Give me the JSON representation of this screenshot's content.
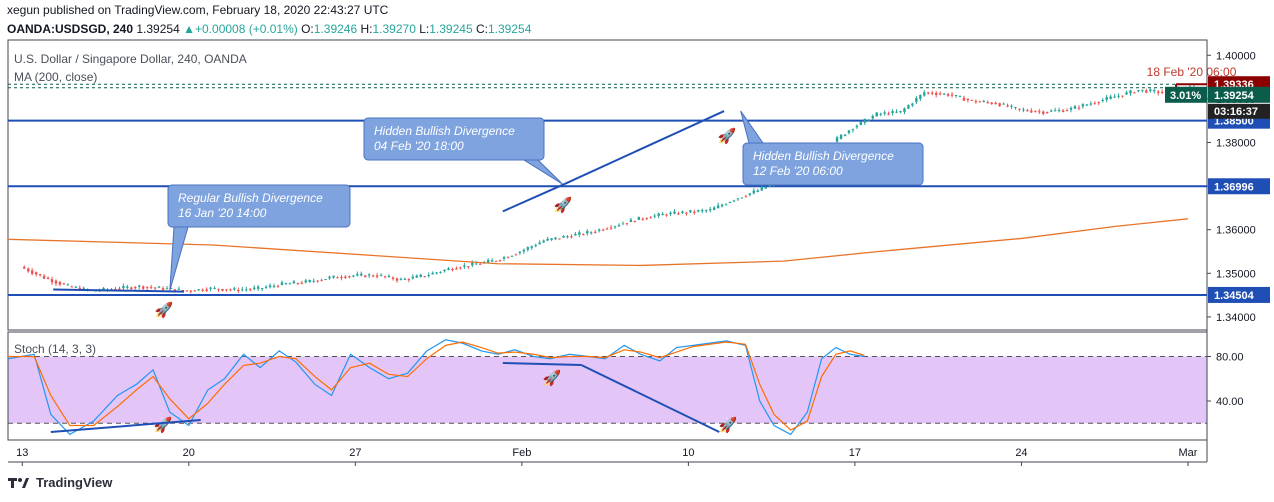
{
  "header": {
    "published": "xegun published on TradingView.com, February 18, 2020 22:43:27 UTC",
    "symbol": "OANDA:USDSGD, 240",
    "last": "1.39254",
    "change": "+0.00008 (+0.01%)",
    "open_label": "O:",
    "open": "1.39246",
    "high_label": "H:",
    "high": "1.39270",
    "low_label": "L:",
    "low": "1.39245",
    "close_label": "C:",
    "close": "1.39254"
  },
  "pane_title": "U.S. Dollar / Singapore Dollar, 240, OANDA",
  "ma_label": "MA (200, close)",
  "stoch_label": "Stoch (14, 3, 3)",
  "footer": {
    "brand": "TradingView"
  },
  "colors": {
    "up": "#26a69a",
    "down": "#ef5350",
    "ma": "#e8742a",
    "level": "#1f4fb5",
    "callout": "#7ea3de",
    "k_line": "#2196f3",
    "d_line": "#ff6d00",
    "stoch_band": "#e3c6f7",
    "price_marker": "#333333",
    "range_line": "#8b0000"
  },
  "chart_data": [
    {
      "type": "candlestick",
      "title": "U.S. Dollar / Singapore Dollar, 240, OANDA",
      "x_ticks": [
        "13",
        "20",
        "27",
        "Feb",
        "10",
        "17",
        "24",
        "Mar"
      ],
      "y_ticks": [
        1.34,
        1.35,
        1.36,
        1.37,
        1.38,
        1.39,
        1.4
      ],
      "y_tick_labels": [
        "1.34000",
        "1.35000",
        "1.36000",
        "1.37000",
        "1.38000",
        "1.39000",
        "1.40000"
      ],
      "ylim": [
        1.337,
        1.4035
      ],
      "xlim_days": [
        -0.6,
        49.8
      ],
      "horizontal_levels": [
        {
          "value": 1.34504,
          "label": "1.34504"
        },
        {
          "value": 1.36996,
          "label": "1.36996"
        },
        {
          "value": 1.385,
          "label": "1.38500"
        }
      ],
      "current_price": {
        "value": 1.39254,
        "label": "1.39254",
        "change_label": "3.01%",
        "countdown": "03:16:37"
      },
      "range_top": {
        "value": 1.39336,
        "label": "1.39336",
        "date_label": "18 Feb '20 06:00"
      },
      "price_path_days": [
        0,
        1,
        2,
        3,
        4,
        5,
        6,
        7,
        8,
        9,
        10,
        11,
        12,
        13,
        14,
        15,
        16,
        17,
        18,
        19,
        20,
        21,
        22,
        23,
        24,
        25,
        26,
        27,
        28,
        29,
        30,
        31,
        32,
        33,
        34,
        35,
        36,
        37,
        38,
        39,
        40,
        41,
        42,
        43,
        44,
        45,
        46,
        47,
        48,
        49
      ],
      "price_path_values": [
        1.3515,
        1.349,
        1.347,
        1.346,
        1.3465,
        1.347,
        1.3465,
        1.346,
        1.3465,
        1.3462,
        1.3465,
        1.3475,
        1.348,
        1.349,
        1.3495,
        1.3495,
        1.3485,
        1.3495,
        1.351,
        1.352,
        1.353,
        1.355,
        1.3575,
        1.3585,
        1.3595,
        1.361,
        1.3625,
        1.3635,
        1.364,
        1.3645,
        1.367,
        1.369,
        1.3715,
        1.3705,
        1.3795,
        1.3835,
        1.3865,
        1.387,
        1.3915,
        1.391,
        1.3895,
        1.389,
        1.3875,
        1.387,
        1.3875,
        1.389,
        1.3905,
        1.392,
        1.3915,
        1.3925
      ],
      "ma_days": [
        -0.6,
        8,
        15,
        20,
        26,
        32,
        36,
        42,
        46,
        49
      ],
      "ma_values": [
        1.3578,
        1.3565,
        1.354,
        1.3522,
        1.3518,
        1.3528,
        1.355,
        1.358,
        1.3608,
        1.3625
      ],
      "annotations": [
        {
          "text_lines": [
            "Regular Bullish Divergence",
            "16 Jan '20 14:00"
          ],
          "anchor_day": 6.2,
          "anchor_price": 1.346
        },
        {
          "text_lines": [
            "Hidden Bullish Divergence",
            "04 Feb '20 18:00"
          ],
          "anchor_day": 22.7,
          "anchor_price": 1.3705
        },
        {
          "text_lines": [
            "Hidden Bullish Divergence",
            "12 Feb '20 06:00"
          ],
          "anchor_day": 30.2,
          "anchor_price": 1.3872
        }
      ],
      "trend_lines": [
        {
          "from": [
            1.3,
            1.3463
          ],
          "to": [
            6.8,
            1.3458
          ]
        },
        {
          "from": [
            20.2,
            1.3642
          ],
          "to": [
            22.8,
            1.3705
          ]
        },
        {
          "from": [
            22.8,
            1.3705
          ],
          "to": [
            29.5,
            1.3872
          ]
        }
      ]
    },
    {
      "type": "line",
      "title": "Stoch (14, 3, 3)",
      "y_ticks": [
        40,
        80
      ],
      "y_tick_labels": [
        "40.00",
        "80.00"
      ],
      "bands": [
        20,
        80
      ],
      "ylim": [
        5,
        102
      ],
      "series": [
        {
          "name": "%K",
          "x": [
            -0.6,
            0.5,
            1.2,
            2.0,
            3.0,
            4.0,
            4.8,
            5.5,
            6.2,
            7.0,
            7.8,
            8.5,
            9.3,
            10.0,
            10.8,
            11.5,
            12.3,
            13.0,
            13.8,
            14.6,
            15.4,
            16.2,
            17.0,
            17.8,
            18.5,
            19.3,
            20.0,
            20.7,
            21.5,
            22.2,
            23.0,
            23.8,
            24.5,
            25.3,
            26.0,
            26.8,
            27.5,
            28.2,
            28.9,
            29.6,
            30.4,
            31.0,
            31.6,
            32.3,
            33.0,
            33.6,
            34.2,
            34.8,
            35.4
          ],
          "values": [
            78,
            82,
            28,
            10,
            22,
            45,
            55,
            68,
            30,
            18,
            50,
            60,
            82,
            70,
            85,
            75,
            55,
            45,
            82,
            70,
            60,
            65,
            85,
            95,
            92,
            85,
            82,
            86,
            80,
            78,
            82,
            80,
            78,
            90,
            82,
            76,
            88,
            90,
            92,
            94,
            90,
            40,
            18,
            10,
            30,
            78,
            88,
            82,
            80
          ]
        },
        {
          "name": "%D",
          "x": [
            -0.6,
            0.5,
            1.2,
            2.0,
            3.0,
            4.0,
            4.8,
            5.5,
            6.2,
            7.0,
            7.8,
            8.5,
            9.3,
            10.0,
            10.8,
            11.5,
            12.3,
            13.0,
            13.8,
            14.6,
            15.4,
            16.2,
            17.0,
            17.8,
            18.5,
            19.3,
            20.0,
            20.7,
            21.5,
            22.2,
            23.0,
            23.8,
            24.5,
            25.3,
            26.0,
            26.8,
            27.5,
            28.2,
            28.9,
            29.6,
            30.4,
            31.0,
            31.6,
            32.3,
            33.0,
            33.6,
            34.2,
            34.8,
            35.4
          ],
          "values": [
            80,
            80,
            45,
            18,
            18,
            35,
            50,
            62,
            42,
            24,
            38,
            55,
            72,
            74,
            80,
            78,
            62,
            50,
            70,
            74,
            64,
            62,
            78,
            90,
            93,
            88,
            83,
            84,
            82,
            79,
            80,
            80,
            79,
            86,
            84,
            79,
            84,
            89,
            91,
            93,
            91,
            55,
            28,
            14,
            22,
            62,
            82,
            85,
            81
          ]
        }
      ]
    }
  ]
}
